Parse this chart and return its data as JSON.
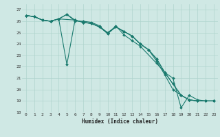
{
  "title": "",
  "xlabel": "Humidex (Indice chaleur)",
  "ylabel": "",
  "xlim": [
    -0.5,
    23.5
  ],
  "ylim": [
    18,
    27.5
  ],
  "yticks": [
    18,
    19,
    20,
    21,
    22,
    23,
    24,
    25,
    26,
    27
  ],
  "xticks": [
    0,
    1,
    2,
    3,
    4,
    5,
    6,
    7,
    8,
    9,
    10,
    11,
    12,
    13,
    14,
    15,
    16,
    17,
    18,
    19,
    20,
    21,
    22,
    23
  ],
  "bg_color": "#cfe8e4",
  "line_color": "#1a7a6e",
  "grid_color": "#b0d4ce",
  "lines": [
    {
      "x": [
        0,
        1,
        2,
        3,
        4,
        5,
        6,
        7,
        8,
        9,
        10,
        11,
        12,
        13,
        14,
        16,
        17,
        18,
        19,
        20,
        21,
        22,
        23
      ],
      "y": [
        26.5,
        26.4,
        26.1,
        26.0,
        26.2,
        26.6,
        26.0,
        26.0,
        25.9,
        25.6,
        24.9,
        25.6,
        24.8,
        24.3,
        23.8,
        22.3,
        21.5,
        21.0,
        18.4,
        19.5,
        19.1,
        19.0,
        19.0
      ]
    },
    {
      "x": [
        0,
        1,
        2,
        3,
        4,
        5,
        6,
        7,
        8,
        9,
        10,
        11,
        12,
        13,
        14,
        15,
        16,
        17,
        18,
        19,
        20,
        21,
        22,
        23
      ],
      "y": [
        26.5,
        26.4,
        26.1,
        26.0,
        26.2,
        22.2,
        26.1,
        25.9,
        25.8,
        25.5,
        25.0,
        25.5,
        25.1,
        24.7,
        24.0,
        23.5,
        22.7,
        21.5,
        20.5,
        19.5,
        19.1,
        19.0,
        19.0,
        19.0
      ]
    },
    {
      "x": [
        0,
        1,
        2,
        3,
        4,
        6,
        7,
        8,
        9,
        10,
        11,
        12,
        13,
        14,
        15,
        16,
        17,
        18,
        19,
        20,
        21,
        22,
        23
      ],
      "y": [
        26.5,
        26.4,
        26.1,
        26.0,
        26.2,
        26.1,
        25.9,
        25.8,
        25.5,
        25.0,
        25.5,
        25.1,
        24.7,
        24.0,
        23.5,
        22.7,
        21.5,
        20.5,
        19.5,
        19.1,
        19.0,
        19.0,
        19.0
      ]
    },
    {
      "x": [
        0,
        1,
        2,
        3,
        4,
        5,
        6,
        7,
        8,
        9,
        10,
        11,
        12,
        13,
        14,
        15,
        16,
        17,
        18,
        19,
        20,
        21,
        22,
        23
      ],
      "y": [
        26.5,
        26.4,
        26.1,
        26.0,
        26.2,
        26.6,
        26.1,
        25.9,
        25.8,
        25.5,
        24.9,
        25.5,
        25.1,
        24.7,
        24.0,
        23.5,
        22.5,
        21.3,
        20.0,
        19.5,
        19.1,
        19.0,
        19.0,
        19.0
      ]
    }
  ]
}
